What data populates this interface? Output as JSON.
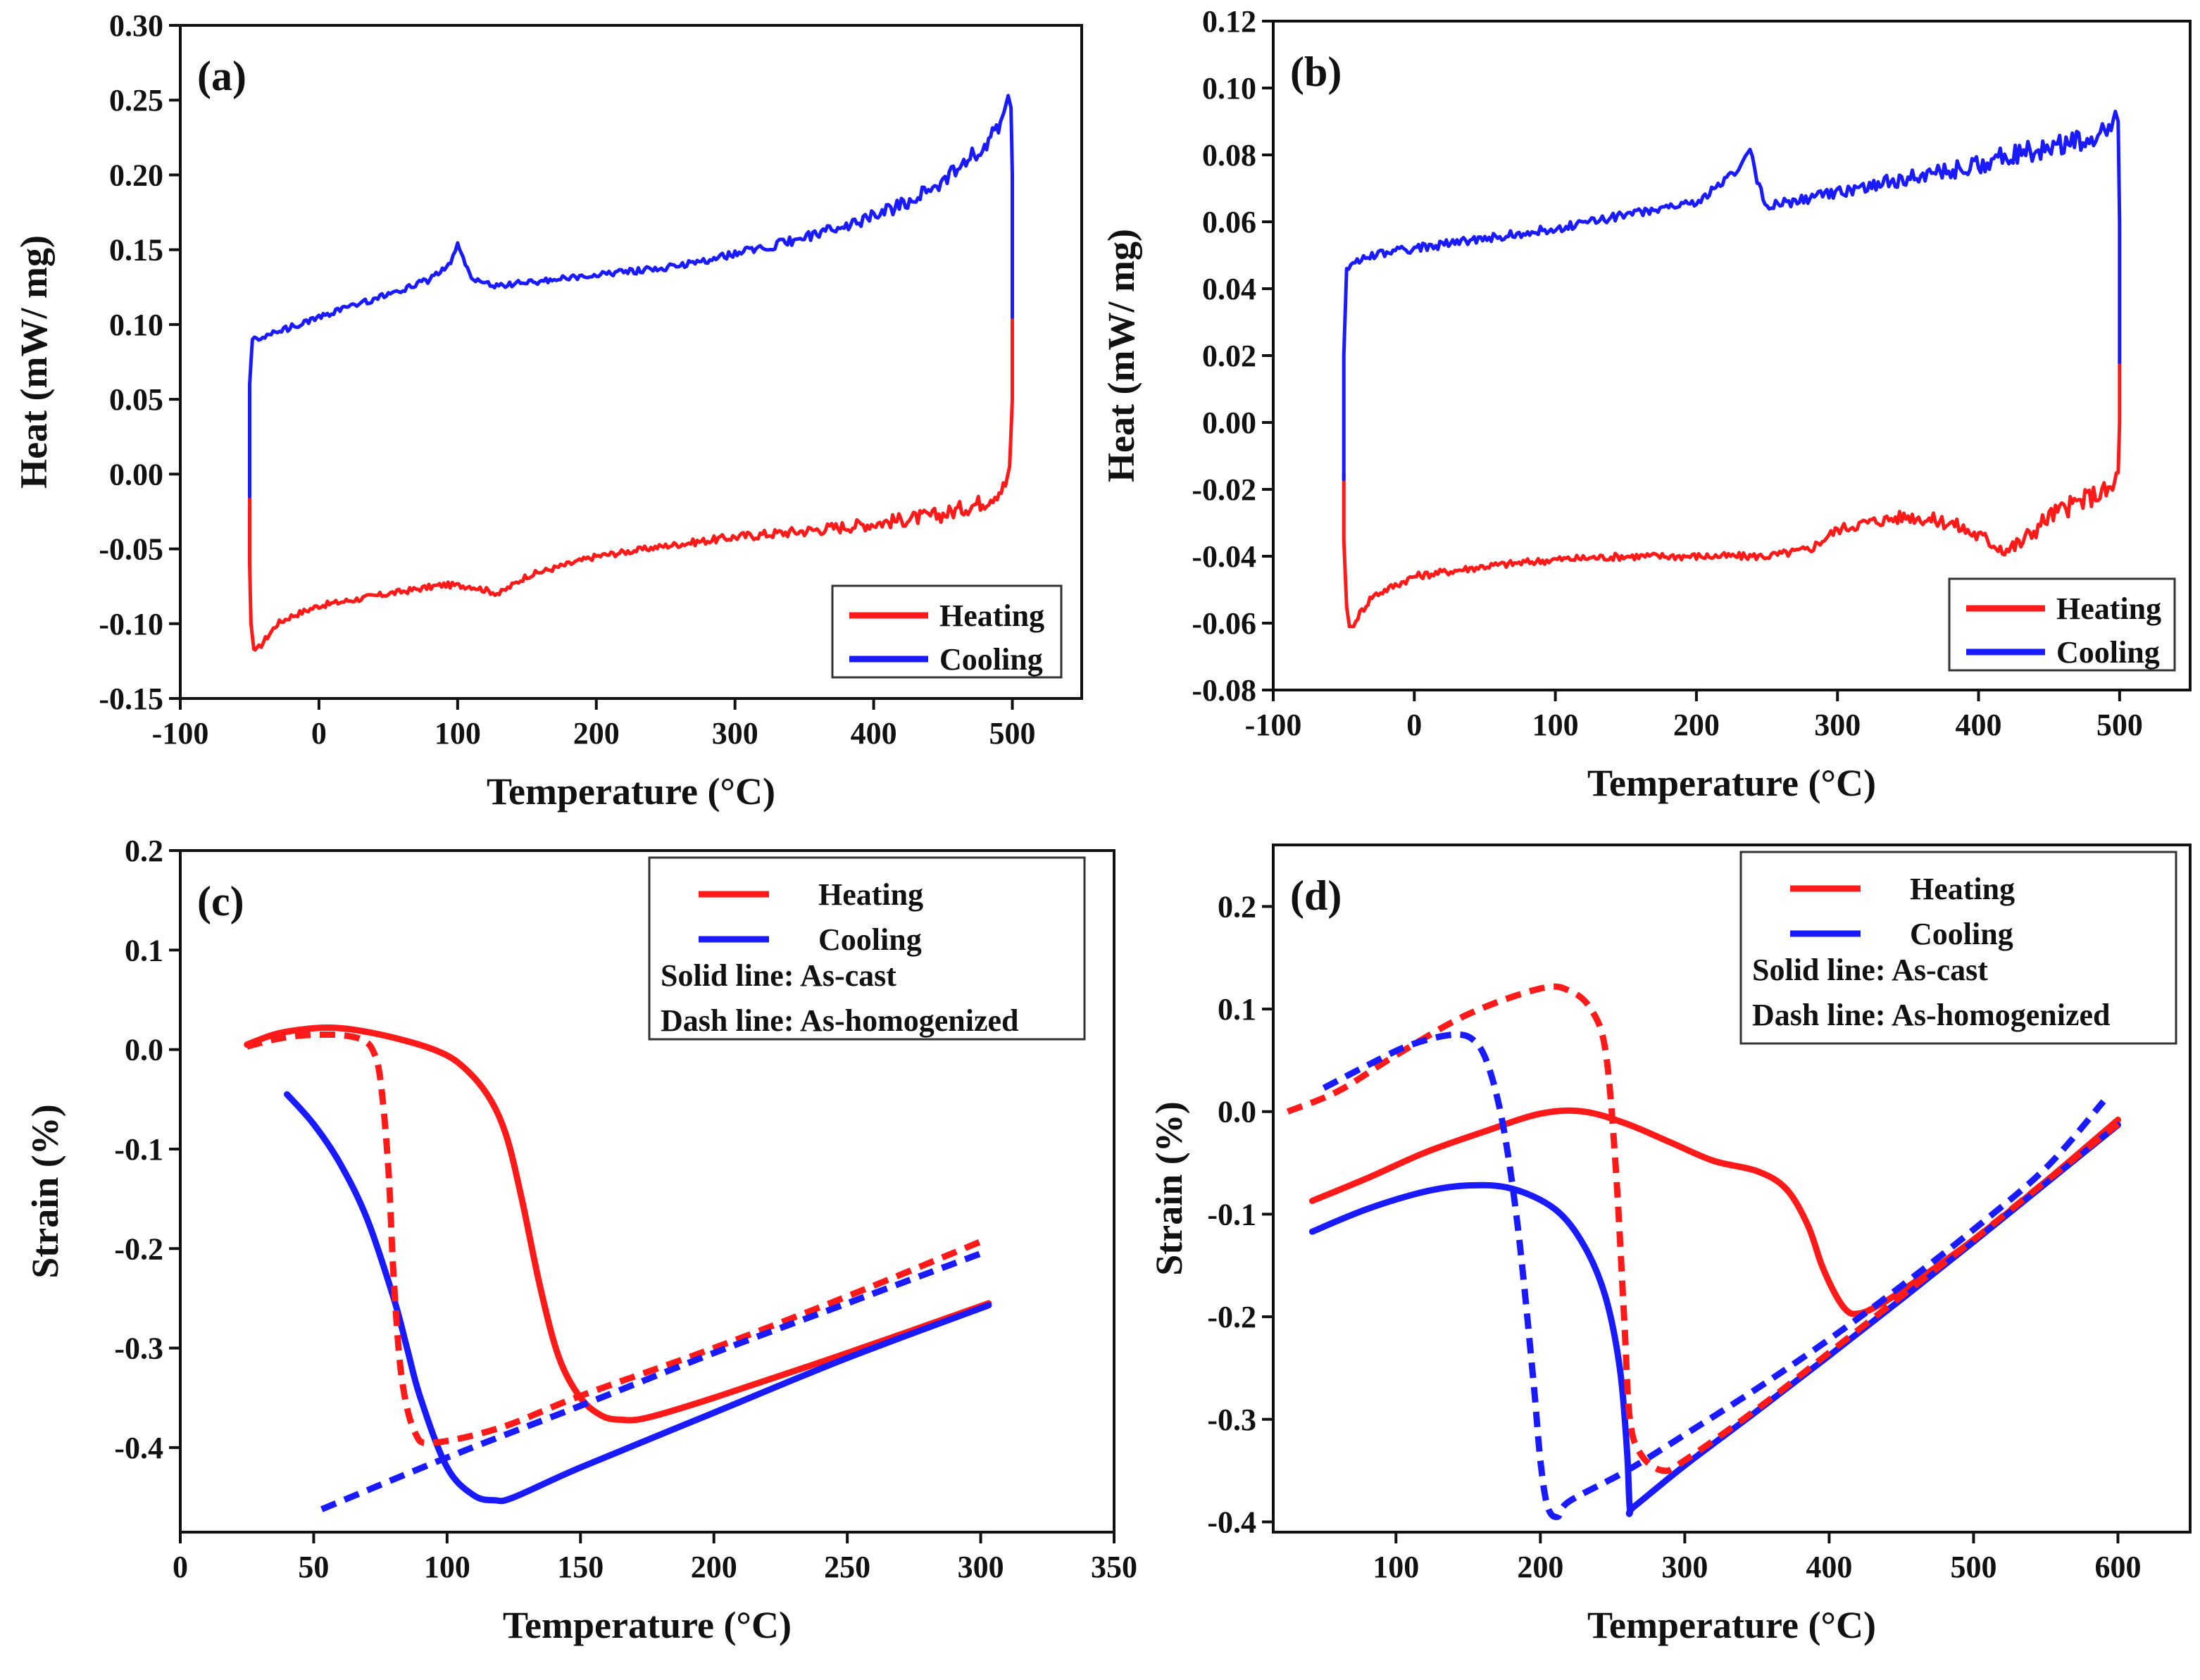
{
  "colors": {
    "heating": "#ff1a1a",
    "cooling": "#1a1aff",
    "axis": "#111111"
  },
  "chart_data": [
    {
      "id": "a",
      "type": "line",
      "panel_label": "(a)",
      "xlabel": "Temperature (°C)",
      "ylabel": "Heat (mW/ mg)",
      "xlim": [
        -100,
        550
      ],
      "ylim": [
        -0.15,
        0.3
      ],
      "xticks": [
        -100,
        0,
        100,
        200,
        300,
        400,
        500
      ],
      "yticks": [
        -0.15,
        -0.1,
        -0.05,
        0.0,
        0.05,
        0.1,
        0.15,
        0.2,
        0.25,
        0.3
      ],
      "xtick_labels": [
        "-100",
        "0",
        "100",
        "200",
        "300",
        "400",
        "500"
      ],
      "ytick_labels": [
        "-0.15",
        "-0.10",
        "-0.05",
        "0.00",
        "0.05",
        "0.10",
        "0.15",
        "0.20",
        "0.25",
        "0.30"
      ],
      "legend": {
        "position": "bottom-right",
        "entries": [
          "Heating",
          "Cooling"
        ]
      },
      "series": [
        {
          "name": "Heating",
          "color_key": "heating",
          "noise": 0.004,
          "x": [
            -50,
            -50,
            -49,
            -47,
            -45,
            -40,
            -30,
            -20,
            0,
            50,
            90,
            110,
            130,
            150,
            200,
            250,
            300,
            350,
            400,
            450,
            480,
            495,
            498,
            500,
            500
          ],
          "y": [
            -0.01,
            -0.06,
            -0.1,
            -0.117,
            -0.118,
            -0.112,
            -0.1,
            -0.095,
            -0.088,
            -0.08,
            -0.074,
            -0.075,
            -0.08,
            -0.068,
            -0.055,
            -0.048,
            -0.042,
            -0.038,
            -0.033,
            -0.027,
            -0.018,
            -0.008,
            0.005,
            0.05,
            0.105
          ]
        },
        {
          "name": "Cooling",
          "color_key": "cooling",
          "noise": 0.004,
          "x": [
            500,
            500,
            499,
            497,
            494,
            490,
            480,
            450,
            420,
            400,
            350,
            300,
            250,
            200,
            150,
            125,
            110,
            104,
            100,
            95,
            80,
            50,
            0,
            -30,
            -48,
            -50,
            -50
          ],
          "y": [
            0.105,
            0.2,
            0.245,
            0.253,
            0.242,
            0.232,
            0.22,
            0.196,
            0.18,
            0.172,
            0.158,
            0.147,
            0.138,
            0.133,
            0.128,
            0.126,
            0.131,
            0.145,
            0.153,
            0.14,
            0.13,
            0.12,
            0.105,
            0.095,
            0.09,
            0.06,
            -0.015
          ]
        }
      ]
    },
    {
      "id": "b",
      "type": "line",
      "panel_label": "(b)",
      "xlabel": "Temperature (°C)",
      "ylabel": "Heat (mW/ mg)",
      "xlim": [
        -100,
        550
      ],
      "ylim": [
        -0.08,
        0.12
      ],
      "xticks": [
        -100,
        0,
        100,
        200,
        300,
        400,
        500
      ],
      "yticks": [
        -0.08,
        -0.06,
        -0.04,
        -0.02,
        0.0,
        0.02,
        0.04,
        0.06,
        0.08,
        0.1,
        0.12
      ],
      "xtick_labels": [
        "-100",
        "0",
        "100",
        "200",
        "300",
        "400",
        "500"
      ],
      "ytick_labels": [
        "-0.08",
        "-0.06",
        "-0.04",
        "-0.02",
        "0.00",
        "0.02",
        "0.04",
        "0.06",
        "0.08",
        "0.10",
        "0.12"
      ],
      "legend": {
        "position": "bottom-right",
        "entries": [
          "Heating",
          "Cooling"
        ]
      },
      "series": [
        {
          "name": "Heating",
          "color_key": "heating",
          "noise": 0.0022,
          "x": [
            -50,
            -50,
            -48,
            -46,
            -43,
            -40,
            -30,
            0,
            50,
            100,
            150,
            200,
            250,
            280,
            300,
            320,
            350,
            380,
            400,
            420,
            430,
            450,
            480,
            495,
            499,
            500,
            500
          ],
          "y": [
            -0.015,
            -0.035,
            -0.055,
            -0.061,
            -0.061,
            -0.058,
            -0.052,
            -0.046,
            -0.043,
            -0.041,
            -0.04,
            -0.04,
            -0.04,
            -0.038,
            -0.032,
            -0.03,
            -0.028,
            -0.03,
            -0.034,
            -0.038,
            -0.036,
            -0.028,
            -0.022,
            -0.02,
            -0.015,
            0.0,
            0.018
          ]
        },
        {
          "name": "Cooling",
          "color_key": "cooling",
          "noise": 0.0025,
          "x": [
            500,
            500,
            499,
            497,
            494,
            480,
            450,
            420,
            400,
            350,
            300,
            270,
            250,
            243,
            238,
            230,
            220,
            200,
            150,
            100,
            50,
            0,
            -30,
            -48,
            -50,
            -50
          ],
          "y": [
            0.018,
            0.06,
            0.09,
            0.093,
            0.088,
            0.085,
            0.082,
            0.08,
            0.077,
            0.073,
            0.069,
            0.066,
            0.065,
            0.072,
            0.082,
            0.076,
            0.072,
            0.066,
            0.062,
            0.058,
            0.055,
            0.052,
            0.05,
            0.046,
            0.02,
            -0.017
          ]
        }
      ]
    },
    {
      "id": "c",
      "type": "line",
      "panel_label": "(c)",
      "xlabel": "Temperature (°C)",
      "ylabel": "Strain (%)",
      "xlim": [
        0,
        350
      ],
      "ylim": [
        -0.485,
        0.2
      ],
      "xticks": [
        0,
        50,
        100,
        150,
        200,
        250,
        300,
        350
      ],
      "yticks": [
        -0.4,
        -0.3,
        -0.2,
        -0.1,
        0.0,
        0.1,
        0.2
      ],
      "xtick_labels": [
        "0",
        "50",
        "100",
        "150",
        "200",
        "250",
        "300",
        "350"
      ],
      "ytick_labels": [
        "-0.4",
        "-0.3",
        "-0.2",
        "-0.1",
        "0.0",
        "0.1",
        "0.2"
      ],
      "legend": {
        "position": "top-right",
        "entries": [
          "Heating",
          "Cooling"
        ],
        "notes": [
          "Solid line: As-cast",
          "Dash line: As-homogenized"
        ]
      },
      "series": [
        {
          "name": "Heating",
          "style": "solid",
          "color_key": "heating",
          "x": [
            25,
            35,
            45,
            55,
            65,
            80,
            95,
            105,
            115,
            122,
            128,
            135,
            142,
            150,
            158,
            165,
            175,
            200,
            250,
            303
          ],
          "y": [
            0.005,
            0.015,
            0.02,
            0.022,
            0.02,
            0.012,
            0.0,
            -0.015,
            -0.045,
            -0.085,
            -0.15,
            -0.24,
            -0.31,
            -0.35,
            -0.368,
            -0.372,
            -0.37,
            -0.35,
            -0.305,
            -0.255
          ]
        },
        {
          "name": "Cooling",
          "style": "solid",
          "color_key": "cooling",
          "x": [
            40,
            50,
            60,
            70,
            80,
            85,
            90,
            100,
            110,
            118,
            125,
            150,
            200,
            250,
            303
          ],
          "y": [
            -0.045,
            -0.075,
            -0.115,
            -0.17,
            -0.25,
            -0.3,
            -0.35,
            -0.42,
            -0.448,
            -0.453,
            -0.45,
            -0.42,
            -0.365,
            -0.31,
            -0.257
          ]
        },
        {
          "name": "Heating",
          "style": "dash",
          "color_key": "heating",
          "x": [
            25,
            35,
            45,
            55,
            62,
            68,
            72,
            75,
            78,
            80,
            83,
            88,
            95,
            120,
            150,
            200,
            250,
            300
          ],
          "y": [
            0.003,
            0.01,
            0.014,
            0.015,
            0.014,
            0.01,
            0.0,
            -0.03,
            -0.12,
            -0.23,
            -0.33,
            -0.385,
            -0.395,
            -0.38,
            -0.348,
            -0.3,
            -0.248,
            -0.193
          ]
        },
        {
          "name": "Cooling",
          "style": "dash",
          "color_key": "cooling",
          "x": [
            53,
            100,
            150,
            200,
            250,
            300
          ],
          "y": [
            -0.462,
            -0.41,
            -0.358,
            -0.305,
            -0.255,
            -0.205
          ]
        }
      ]
    },
    {
      "id": "d",
      "type": "line",
      "panel_label": "(d)",
      "xlabel": "Temperature (°C)",
      "ylabel": "Strain (%)",
      "xlim": [
        15,
        650
      ],
      "ylim": [
        -0.41,
        0.26
      ],
      "xticks": [
        100,
        200,
        300,
        400,
        500,
        600
      ],
      "yticks": [
        -0.4,
        -0.3,
        -0.2,
        -0.1,
        0.0,
        0.1,
        0.2
      ],
      "xtick_labels": [
        "100",
        "200",
        "300",
        "400",
        "500",
        "600"
      ],
      "ytick_labels": [
        "-0.4",
        "-0.3",
        "-0.2",
        "-0.1",
        "0.0",
        "0.1",
        "0.2"
      ],
      "legend": {
        "position": "top-right",
        "entries": [
          "Heating",
          "Cooling"
        ],
        "notes": [
          "Solid line: As-cast",
          "Dash line: As-homogenized"
        ]
      },
      "series": [
        {
          "name": "Heating",
          "style": "solid",
          "color_key": "heating",
          "x": [
            42,
            80,
            120,
            160,
            200,
            230,
            260,
            290,
            320,
            350,
            370,
            385,
            395,
            405,
            413,
            420,
            430,
            450,
            500,
            550,
            600
          ],
          "y": [
            -0.087,
            -0.065,
            -0.04,
            -0.02,
            -0.002,
            0.0,
            -0.012,
            -0.03,
            -0.048,
            -0.058,
            -0.075,
            -0.11,
            -0.15,
            -0.18,
            -0.195,
            -0.197,
            -0.192,
            -0.175,
            -0.125,
            -0.068,
            -0.008
          ]
        },
        {
          "name": "Cooling",
          "style": "solid",
          "color_key": "cooling",
          "x": [
            42,
            80,
            120,
            150,
            180,
            210,
            230,
            245,
            255,
            260,
            262,
            265,
            300,
            350,
            400,
            450,
            500,
            550,
            600
          ],
          "y": [
            -0.117,
            -0.095,
            -0.078,
            -0.072,
            -0.075,
            -0.095,
            -0.13,
            -0.18,
            -0.25,
            -0.33,
            -0.387,
            -0.385,
            -0.345,
            -0.292,
            -0.238,
            -0.183,
            -0.127,
            -0.07,
            -0.013
          ]
        },
        {
          "name": "Heating",
          "style": "dash",
          "color_key": "heating",
          "x": [
            25,
            60,
            100,
            150,
            200,
            220,
            235,
            245,
            252,
            258,
            262,
            270,
            285,
            300,
            350,
            400,
            450,
            500,
            550,
            600
          ],
          "y": [
            0.0,
            0.02,
            0.055,
            0.095,
            0.12,
            0.118,
            0.1,
            0.06,
            -0.05,
            -0.2,
            -0.3,
            -0.335,
            -0.35,
            -0.34,
            -0.29,
            -0.235,
            -0.18,
            -0.125,
            -0.068,
            -0.012
          ]
        },
        {
          "name": "Cooling",
          "style": "dash",
          "color_key": "cooling",
          "x": [
            50,
            80,
            110,
            140,
            155,
            165,
            175,
            185,
            195,
            200,
            205,
            212,
            220,
            260,
            300,
            350,
            400,
            450,
            500,
            550,
            590
          ],
          "y": [
            0.023,
            0.045,
            0.065,
            0.075,
            0.068,
            0.04,
            -0.02,
            -0.12,
            -0.26,
            -0.34,
            -0.385,
            -0.395,
            -0.38,
            -0.35,
            -0.315,
            -0.27,
            -0.222,
            -0.17,
            -0.115,
            -0.055,
            0.01
          ]
        }
      ]
    }
  ]
}
